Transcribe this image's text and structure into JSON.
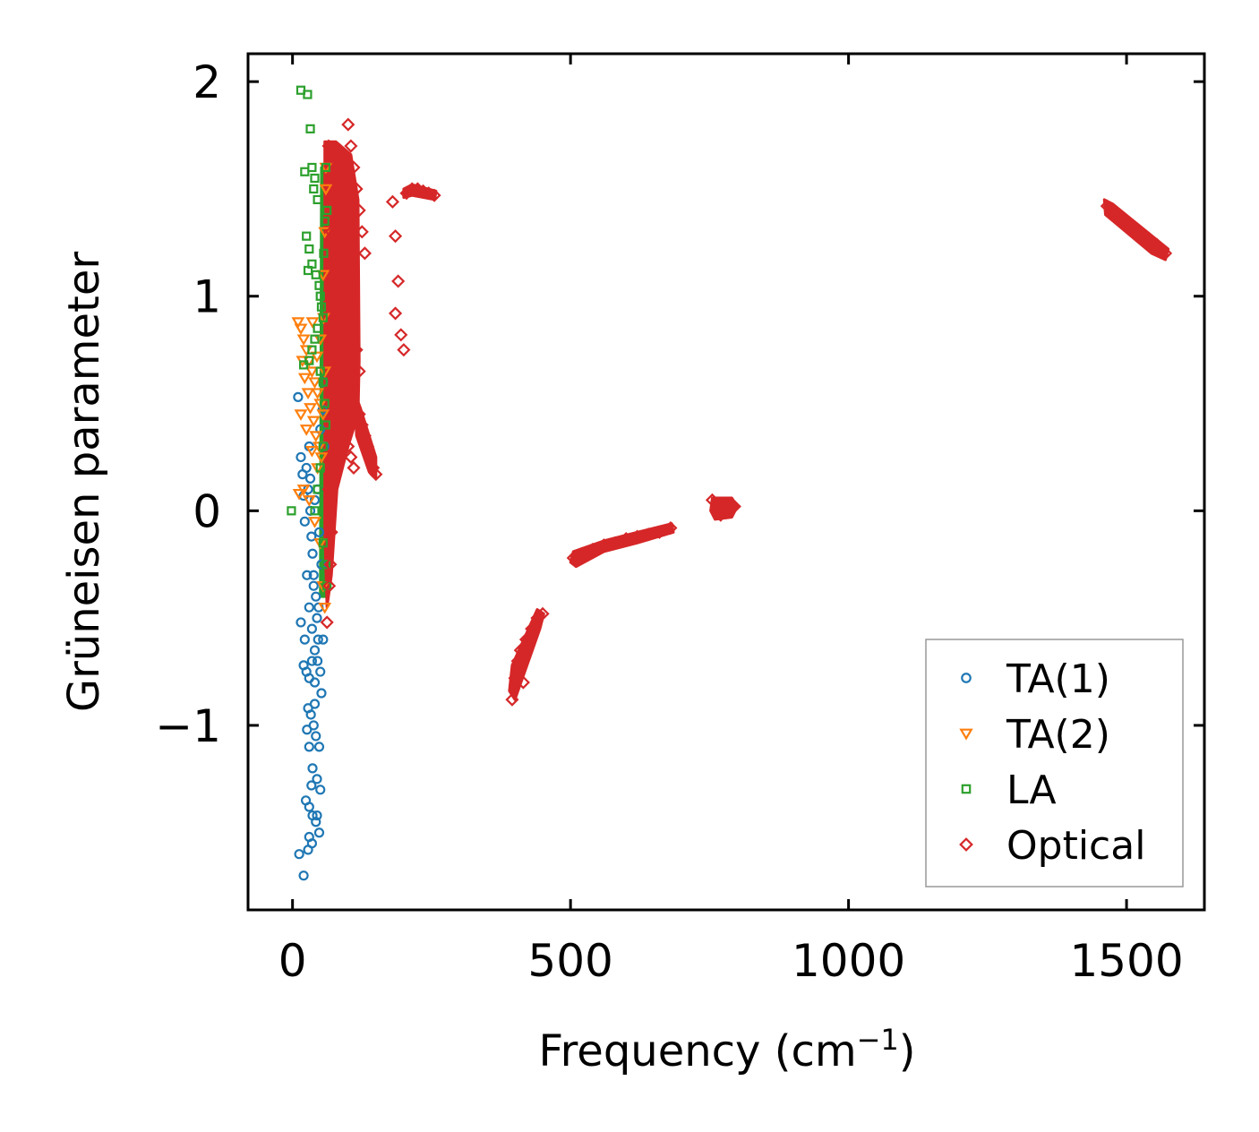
{
  "chart_data": {
    "type": "scatter",
    "title": "",
    "xlabel": "Frequency (cm",
    "xlabel_sup": "−1",
    "xlabel_end": ")",
    "ylabel": "Grüneisen parameter",
    "xlim": [
      -80,
      1640
    ],
    "ylim": [
      -1.86,
      2.13
    ],
    "xticks": [
      0,
      500,
      1000,
      1500
    ],
    "xtick_labels": [
      "0",
      "500",
      "1000",
      "1500"
    ],
    "yticks": [
      -1,
      0,
      1,
      2
    ],
    "ytick_labels": [
      "−1",
      "0",
      "1",
      "2"
    ],
    "grid": false,
    "legend_position": "lower-right",
    "series": [
      {
        "name": "TA(1)",
        "marker": "circle",
        "color": "#1f77b4",
        "points": [
          [
            10,
            0.53
          ],
          [
            15,
            0.25
          ],
          [
            18,
            0.17
          ],
          [
            20,
            0.07
          ],
          [
            22,
            -0.05
          ],
          [
            25,
            0.2
          ],
          [
            28,
            0.1
          ],
          [
            30,
            0.3
          ],
          [
            32,
            0.0
          ],
          [
            34,
            -0.12
          ],
          [
            36,
            -0.2
          ],
          [
            38,
            -0.3
          ],
          [
            40,
            0.05
          ],
          [
            42,
            -0.4
          ],
          [
            44,
            -0.5
          ],
          [
            46,
            -0.6
          ],
          [
            48,
            -0.1
          ],
          [
            50,
            0.38
          ],
          [
            52,
            -0.25
          ],
          [
            54,
            0.47
          ],
          [
            30,
            -0.45
          ],
          [
            35,
            -0.55
          ],
          [
            40,
            -0.65
          ],
          [
            45,
            -0.7
          ],
          [
            50,
            -0.75
          ],
          [
            55,
            -0.6
          ],
          [
            20,
            -0.72
          ],
          [
            25,
            -0.75
          ],
          [
            30,
            -0.78
          ],
          [
            35,
            -0.7
          ],
          [
            40,
            -0.8
          ],
          [
            15,
            -0.52
          ],
          [
            22,
            -0.6
          ],
          [
            28,
            -0.92
          ],
          [
            33,
            -0.95
          ],
          [
            38,
            -1.0
          ],
          [
            42,
            -1.05
          ],
          [
            48,
            -1.1
          ],
          [
            26,
            -1.02
          ],
          [
            30,
            -1.1
          ],
          [
            36,
            -1.2
          ],
          [
            44,
            -1.25
          ],
          [
            50,
            -1.3
          ],
          [
            24,
            -1.35
          ],
          [
            30,
            -1.38
          ],
          [
            36,
            -1.42
          ],
          [
            42,
            -1.45
          ],
          [
            48,
            -1.5
          ],
          [
            30,
            -1.52
          ],
          [
            35,
            -1.55
          ],
          [
            28,
            -1.58
          ],
          [
            12,
            -1.6
          ],
          [
            20,
            -1.7
          ],
          [
            55,
            0.6
          ],
          [
            57,
            0.3
          ],
          [
            45,
            0.1
          ],
          [
            38,
            -0.35
          ],
          [
            26,
            -0.3
          ],
          [
            32,
            0.15
          ],
          [
            47,
            -0.45
          ],
          [
            40,
            -0.9
          ],
          [
            52,
            -0.85
          ],
          [
            34,
            -1.28
          ],
          [
            44,
            -1.42
          ]
        ]
      },
      {
        "name": "TA(2)",
        "marker": "triangle-down",
        "color": "#ff7f0e",
        "points": [
          [
            10,
            0.88
          ],
          [
            15,
            0.85
          ],
          [
            20,
            0.8
          ],
          [
            25,
            0.75
          ],
          [
            30,
            0.7
          ],
          [
            35,
            0.65
          ],
          [
            40,
            0.6
          ],
          [
            45,
            0.55
          ],
          [
            50,
            0.5
          ],
          [
            55,
            0.45
          ],
          [
            18,
            0.7
          ],
          [
            22,
            0.62
          ],
          [
            28,
            0.55
          ],
          [
            32,
            0.48
          ],
          [
            38,
            0.42
          ],
          [
            42,
            0.35
          ],
          [
            48,
            0.3
          ],
          [
            52,
            0.25
          ],
          [
            15,
            0.45
          ],
          [
            25,
            0.38
          ],
          [
            35,
            0.28
          ],
          [
            45,
            0.2
          ],
          [
            20,
            0.1
          ],
          [
            30,
            0.05
          ],
          [
            40,
            -0.05
          ],
          [
            50,
            -0.15
          ],
          [
            55,
            -0.35
          ],
          [
            58,
            -0.45
          ],
          [
            12,
            0.08
          ],
          [
            55,
            1.1
          ],
          [
            58,
            1.3
          ],
          [
            60,
            1.5
          ],
          [
            56,
            0.9
          ],
          [
            50,
            0.8
          ],
          [
            44,
            0.72
          ],
          [
            36,
            0.88
          ],
          [
            60,
            1.6
          ],
          [
            58,
            0.65
          ]
        ]
      },
      {
        "name": "LA",
        "marker": "square",
        "color": "#2ca02c",
        "points": [
          [
            15,
            1.96
          ],
          [
            27,
            1.94
          ],
          [
            32,
            1.78
          ],
          [
            22,
            1.58
          ],
          [
            35,
            1.6
          ],
          [
            40,
            1.55
          ],
          [
            38,
            1.5
          ],
          [
            45,
            1.45
          ],
          [
            25,
            1.28
          ],
          [
            30,
            1.22
          ],
          [
            35,
            1.15
          ],
          [
            42,
            1.1
          ],
          [
            48,
            1.05
          ],
          [
            28,
            1.12
          ],
          [
            50,
            1.0
          ],
          [
            52,
            0.95
          ],
          [
            55,
            0.9
          ],
          [
            45,
            0.85
          ],
          [
            40,
            0.8
          ],
          [
            35,
            0.75
          ],
          [
            30,
            0.7
          ],
          [
            20,
            0.68
          ],
          [
            50,
            0.65
          ],
          [
            55,
            0.6
          ],
          [
            58,
            0.5
          ],
          [
            60,
            0.4
          ],
          [
            55,
            0.3
          ],
          [
            50,
            0.2
          ],
          [
            45,
            0.1
          ],
          [
            40,
            0.0
          ],
          [
            -2,
            0.0
          ],
          [
            55,
            -0.15
          ],
          [
            60,
            -0.25
          ],
          [
            62,
            -0.35
          ],
          [
            58,
            1.35
          ],
          [
            60,
            1.6
          ],
          [
            62,
            1.4
          ],
          [
            56,
            1.2
          ]
        ]
      },
      {
        "name": "Optical",
        "marker": "diamond",
        "color": "#d62728",
        "points": [
          [
            65,
            1.7
          ],
          [
            70,
            1.65
          ],
          [
            75,
            1.55
          ],
          [
            80,
            1.45
          ],
          [
            85,
            1.35
          ],
          [
            90,
            1.25
          ],
          [
            95,
            1.15
          ],
          [
            100,
            1.05
          ],
          [
            105,
            0.95
          ],
          [
            110,
            0.85
          ],
          [
            115,
            0.75
          ],
          [
            120,
            0.65
          ],
          [
            70,
            1.3
          ],
          [
            75,
            1.1
          ],
          [
            80,
            0.9
          ],
          [
            85,
            0.7
          ],
          [
            90,
            0.5
          ],
          [
            95,
            0.4
          ],
          [
            100,
            0.3
          ],
          [
            105,
            0.25
          ],
          [
            110,
            0.2
          ],
          [
            65,
            0.1
          ],
          [
            70,
            -0.1
          ],
          [
            68,
            -0.25
          ],
          [
            66,
            -0.35
          ],
          [
            62,
            -0.52
          ],
          [
            100,
            1.8
          ],
          [
            105,
            1.7
          ],
          [
            110,
            1.6
          ],
          [
            115,
            1.5
          ],
          [
            120,
            1.4
          ],
          [
            125,
            1.3
          ],
          [
            130,
            1.2
          ],
          [
            120,
            0.45
          ],
          [
            125,
            0.4
          ],
          [
            130,
            0.35
          ],
          [
            135,
            0.3
          ],
          [
            140,
            0.25
          ],
          [
            145,
            0.2
          ],
          [
            150,
            0.17
          ],
          [
            180,
            1.44
          ],
          [
            185,
            1.28
          ],
          [
            190,
            1.07
          ],
          [
            185,
            0.92
          ],
          [
            195,
            0.82
          ],
          [
            200,
            0.75
          ],
          [
            205,
            1.48
          ],
          [
            215,
            1.5
          ],
          [
            225,
            1.5
          ],
          [
            235,
            1.49
          ],
          [
            245,
            1.48
          ],
          [
            255,
            1.47
          ],
          [
            395,
            -0.88
          ],
          [
            400,
            -0.78
          ],
          [
            405,
            -0.7
          ],
          [
            410,
            -0.65
          ],
          [
            420,
            -0.6
          ],
          [
            430,
            -0.55
          ],
          [
            440,
            -0.5
          ],
          [
            450,
            -0.48
          ],
          [
            415,
            -0.8
          ],
          [
            505,
            -0.22
          ],
          [
            520,
            -0.2
          ],
          [
            540,
            -0.18
          ],
          [
            560,
            -0.16
          ],
          [
            580,
            -0.15
          ],
          [
            600,
            -0.13
          ],
          [
            620,
            -0.12
          ],
          [
            640,
            -0.11
          ],
          [
            660,
            -0.1
          ],
          [
            680,
            -0.08
          ],
          [
            755,
            0.05
          ],
          [
            765,
            0.02
          ],
          [
            775,
            0.0
          ],
          [
            785,
            0.03
          ],
          [
            795,
            0.02
          ],
          [
            770,
            -0.02
          ],
          [
            1465,
            1.42
          ],
          [
            1480,
            1.38
          ],
          [
            1495,
            1.35
          ],
          [
            1510,
            1.32
          ],
          [
            1525,
            1.3
          ],
          [
            1540,
            1.27
          ],
          [
            1555,
            1.24
          ],
          [
            1570,
            1.2
          ]
        ]
      }
    ]
  }
}
